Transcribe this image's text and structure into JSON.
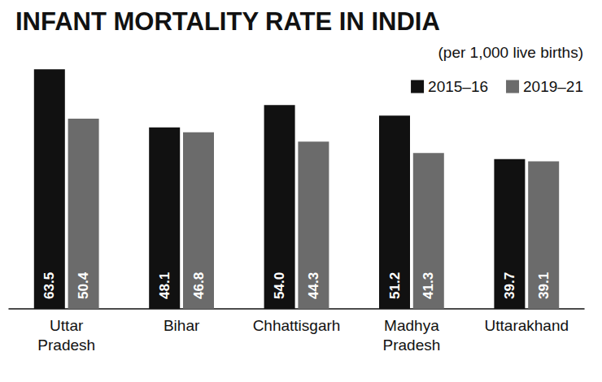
{
  "chart_data": {
    "type": "bar",
    "title": "INFANT MORTALITY RATE IN INDIA",
    "subtitle": "(per 1,000 live births)",
    "categories": [
      "Uttar Pradesh",
      "Bihar",
      "Chhattisgarh",
      "Madhya Pradesh",
      "Uttarakhand"
    ],
    "series": [
      {
        "name": "2015–16",
        "color": "#111111",
        "values": [
          63.5,
          48.1,
          54.0,
          51.2,
          39.7
        ],
        "value_labels": [
          "63.5",
          "48.1",
          "54.0",
          "51.2",
          "39.7"
        ]
      },
      {
        "name": "2019–21",
        "color": "#6b6b6b",
        "values": [
          50.4,
          46.8,
          44.3,
          41.3,
          39.1
        ],
        "value_labels": [
          "50.4",
          "46.8",
          "44.3",
          "41.3",
          "39.1"
        ]
      }
    ],
    "ylim": [
      0,
      70
    ],
    "grid": false,
    "legend": "top-right",
    "data_labels": true,
    "tick_labels": "x"
  }
}
